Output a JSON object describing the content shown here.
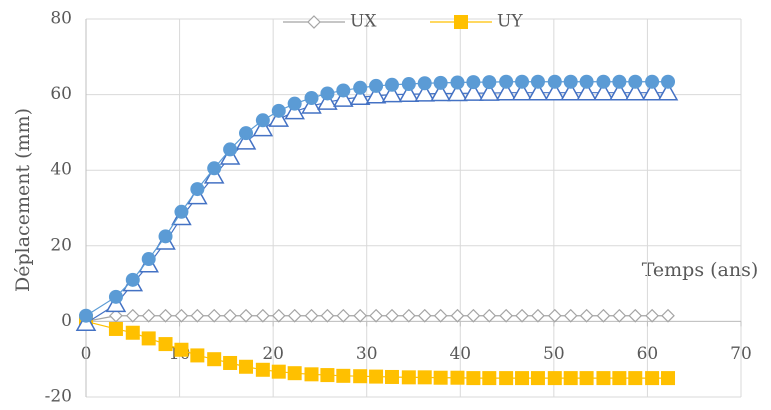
{
  "chart_data": {
    "type": "line",
    "x": [
      0,
      3.2,
      5,
      6.7,
      8.5,
      10.2,
      11.9,
      13.7,
      15.4,
      17.1,
      18.9,
      20.6,
      22.3,
      24.1,
      25.8,
      27.5,
      29.3,
      31,
      32.7,
      34.5,
      36.2,
      37.9,
      39.7,
      41.4,
      43.1,
      44.9,
      46.6,
      48.3,
      50.1,
      51.8,
      53.5,
      55.3,
      57,
      58.7,
      60.5,
      62.2
    ],
    "series": [
      {
        "name": "UX",
        "color": "#a5a5a5",
        "marker": "diamond",
        "values": [
          0,
          1.5,
          1.5,
          1.5,
          1.5,
          1.5,
          1.5,
          1.5,
          1.5,
          1.5,
          1.5,
          1.5,
          1.5,
          1.5,
          1.5,
          1.5,
          1.5,
          1.5,
          1.5,
          1.5,
          1.5,
          1.5,
          1.5,
          1.5,
          1.5,
          1.5,
          1.5,
          1.5,
          1.5,
          1.5,
          1.5,
          1.5,
          1.5,
          1.5,
          1.5,
          1.5
        ]
      },
      {
        "name": "UY",
        "color": "#ffc000",
        "marker": "square",
        "values": [
          0,
          -2,
          -3,
          -4.5,
          -6,
          -7.5,
          -9,
          -10,
          -11,
          -12,
          -12.8,
          -13.3,
          -13.7,
          -14,
          -14.2,
          -14.4,
          -14.5,
          -14.6,
          -14.7,
          -14.8,
          -14.8,
          -14.9,
          -14.9,
          -15,
          -15,
          -15,
          -15,
          -15,
          -15,
          -15,
          -15,
          -15,
          -15,
          -15,
          -15,
          -15
        ]
      },
      {
        "color": "#4472c4",
        "marker": "triangle",
        "values": [
          -0.5,
          4.5,
          10,
          15,
          21,
          27.5,
          33,
          38.5,
          43.5,
          47.5,
          51,
          53.5,
          55.5,
          57,
          58,
          58.8,
          59.3,
          59.7,
          60,
          60.1,
          60.2,
          60.3,
          60.3,
          60.4,
          60.4,
          60.5,
          60.5,
          60.5,
          60.5,
          60.5,
          60.5,
          60.5,
          60.5,
          60.5,
          60.5,
          60.5
        ]
      },
      {
        "color": "#5b9bd5",
        "marker": "circle",
        "values": [
          1.5,
          6.5,
          11,
          16.5,
          22.5,
          29,
          35,
          40.5,
          45.5,
          49.8,
          53.2,
          55.7,
          57.6,
          59.1,
          60.3,
          61.1,
          61.8,
          62.3,
          62.6,
          62.8,
          63,
          63.1,
          63.2,
          63.3,
          63.3,
          63.4,
          63.4,
          63.4,
          63.4,
          63.4,
          63.4,
          63.4,
          63.4,
          63.4,
          63.4,
          63.4
        ]
      }
    ],
    "x_label": "Temps (ans)",
    "y_label": "Déplacement (mm)",
    "xlim": [
      0,
      70
    ],
    "xticks": [
      0,
      10,
      20,
      30,
      40,
      50,
      60,
      70
    ],
    "ylim": [
      -20,
      80
    ],
    "yticks": [
      -20,
      0,
      20,
      40,
      60,
      80
    ],
    "grid": true,
    "legend": "top"
  }
}
